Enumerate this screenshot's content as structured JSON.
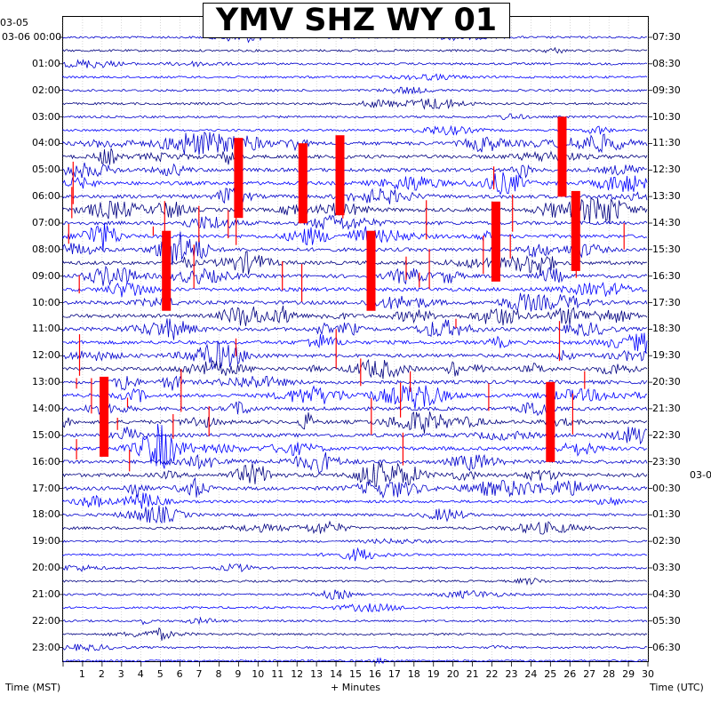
{
  "chart_data": {
    "type": "line",
    "title": "YMV SHZ WY 01",
    "left_axis_label": "Time (MST)",
    "right_axis_label": "Time (UTC)",
    "x_axis_label": "+ Minutes",
    "x_ticks": [
      "1",
      "2",
      "3",
      "4",
      "5",
      "6",
      "7",
      "8",
      "9",
      "10",
      "11",
      "12",
      "13",
      "14",
      "15",
      "16",
      "17",
      "18",
      "19",
      "20",
      "21",
      "22",
      "23",
      "24",
      "25",
      "26",
      "27",
      "28",
      "29",
      "30"
    ],
    "left_date_prev": "03-05",
    "left_date": "03-06",
    "right_date_next": "03-0",
    "left_hour_labels": [
      "00:00",
      "01:00",
      "02:00",
      "03:00",
      "04:00",
      "05:00",
      "06:00",
      "07:00",
      "08:00",
      "09:00",
      "10:00",
      "11:00",
      "12:00",
      "13:00",
      "14:00",
      "15:00",
      "16:00",
      "17:00",
      "18:00",
      "19:00",
      "20:00",
      "21:00",
      "22:00",
      "23:00"
    ],
    "right_hour_labels": [
      "07:30",
      "08:30",
      "09:30",
      "10:30",
      "11:30",
      "12:30",
      "13:30",
      "14:30",
      "15:30",
      "16:30",
      "17:30",
      "18:30",
      "19:30",
      "20:30",
      "21:30",
      "22:30",
      "23:30",
      "00:30",
      "01:30",
      "02:30",
      "03:30",
      "04:30",
      "05:30",
      "06:30"
    ],
    "trace_colors": [
      "#0000cc",
      "#000080",
      "#0000cc",
      "#0000ff"
    ],
    "clip_color": "#ff0000",
    "minutes_range": [
      0,
      30
    ],
    "hours": 24,
    "lines_per_hour": 2,
    "clipped_events_minute_hour": [
      [
        9.0,
        5.3
      ],
      [
        12.3,
        5.5
      ],
      [
        14.2,
        5.2
      ],
      [
        25.6,
        4.5
      ],
      [
        26.3,
        7.3
      ],
      [
        22.2,
        7.7
      ],
      [
        5.3,
        8.8
      ],
      [
        15.8,
        8.8
      ],
      [
        2.1,
        14.3
      ],
      [
        25.0,
        14.5
      ]
    ]
  }
}
